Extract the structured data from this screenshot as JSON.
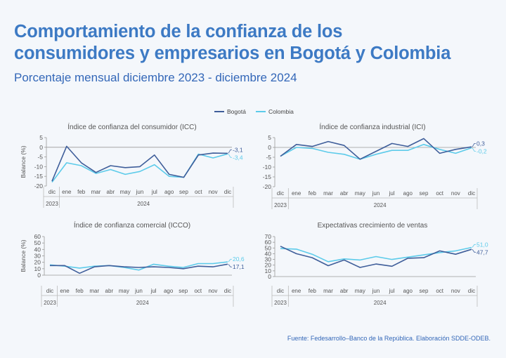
{
  "page": {
    "title_line1": "Comportamiento de la confianza de los",
    "title_line2": "consumidores y empresarios en Bogotá y Colombia",
    "subtitle": "Porcentaje mensual diciembre 2023 - diciembre 2024",
    "source": "Fuente: Fedesarrollo–Banco de la República. Elaboración SDDE-ODEB."
  },
  "legend": [
    {
      "name": "Bogotá",
      "color": "#3f5e9a"
    },
    {
      "name": "Colombia",
      "color": "#5ccbea"
    }
  ],
  "chart_data": [
    {
      "type": "line",
      "title": "Índice de confianza del consumidor (ICC)",
      "ylabel": "Balance (%)",
      "categories": [
        "dic",
        "ene",
        "feb",
        "mar",
        "abr",
        "may",
        "jun",
        "jul",
        "ago",
        "sep",
        "oct",
        "nov",
        "dic"
      ],
      "year_labels": [
        "2023",
        "2024"
      ],
      "yticks": [
        5,
        0,
        -5,
        -10,
        -15,
        -20
      ],
      "ylim": [
        -20,
        5
      ],
      "series": [
        {
          "name": "Bogotá",
          "values": [
            -17.5,
            0.5,
            -8,
            -13,
            -9.5,
            -10.5,
            -10,
            -4,
            -14,
            -15.5,
            -4,
            -3,
            -3.1
          ]
        },
        {
          "name": "Colombia",
          "values": [
            -18,
            -8,
            -9.5,
            -13.5,
            -11.5,
            -14,
            -12.5,
            -9,
            -15,
            -15.5,
            -3.5,
            -5.5,
            -3.4
          ]
        }
      ],
      "end_labels": [
        "-3,1",
        "-3,4"
      ]
    },
    {
      "type": "line",
      "title": "Índice de confianza industrial (ICI)",
      "ylabel": "",
      "categories": [
        "dic",
        "ene",
        "feb",
        "mar",
        "abr",
        "may",
        "jun",
        "jul",
        "ago",
        "sep",
        "oct",
        "nov",
        "dic"
      ],
      "year_labels": [
        "2023",
        "2024"
      ],
      "yticks": [
        5,
        0,
        -5,
        -10,
        -15,
        -20
      ],
      "ylim": [
        -20,
        5
      ],
      "series": [
        {
          "name": "Bogotá",
          "values": [
            -4.5,
            1.5,
            0.5,
            3,
            1,
            -6,
            -2,
            2,
            0.5,
            4.5,
            -3,
            -1,
            0.3
          ]
        },
        {
          "name": "Colombia",
          "values": [
            -4.5,
            0,
            -0.5,
            -2.5,
            -3.5,
            -6,
            -3.5,
            -1.5,
            -1.5,
            1.5,
            -1,
            -3,
            -0.2
          ]
        }
      ],
      "end_labels": [
        "0,3",
        "-0,2"
      ]
    },
    {
      "type": "line",
      "title": "Índice de confianza comercial (ICCO)",
      "ylabel": "Balance (%)",
      "categories": [
        "dic",
        "ene",
        "feb",
        "mar",
        "abr",
        "may",
        "jun",
        "jul",
        "ago",
        "sep",
        "oct",
        "nov",
        "dic"
      ],
      "year_labels": [
        "2023",
        "2024"
      ],
      "yticks": [
        60,
        50,
        40,
        30,
        20,
        10,
        0
      ],
      "ylim": [
        0,
        60
      ],
      "series": [
        {
          "name": "Bogotá",
          "values": [
            15,
            15,
            3,
            13,
            15,
            13,
            12,
            13,
            12,
            10,
            14,
            13,
            17.1
          ]
        },
        {
          "name": "Colombia",
          "values": [
            16,
            14,
            11,
            14,
            15,
            12,
            8,
            17,
            14,
            12,
            18,
            18,
            20.6
          ]
        }
      ],
      "end_labels": [
        "17,1",
        "20,6"
      ]
    },
    {
      "type": "line",
      "title": "Expectativas crecimiento de ventas",
      "ylabel": "",
      "categories": [
        "dic",
        "ene",
        "feb",
        "mar",
        "abr",
        "may",
        "jun",
        "jul",
        "ago",
        "sep",
        "oct",
        "nov",
        "dic"
      ],
      "year_labels": [
        "2023",
        "2024"
      ],
      "yticks": [
        70,
        60,
        50,
        40,
        30,
        20,
        10,
        0
      ],
      "ylim": [
        0,
        70
      ],
      "series": [
        {
          "name": "Bogotá",
          "values": [
            53,
            40,
            33,
            19,
            29,
            16,
            22,
            18,
            32,
            33,
            45,
            39,
            47.7
          ]
        },
        {
          "name": "Colombia",
          "values": [
            49,
            48,
            39,
            26,
            31,
            29,
            35,
            30,
            34,
            38,
            42,
            45,
            51.0
          ]
        }
      ],
      "end_labels": [
        "47,7",
        "51,0"
      ]
    }
  ]
}
